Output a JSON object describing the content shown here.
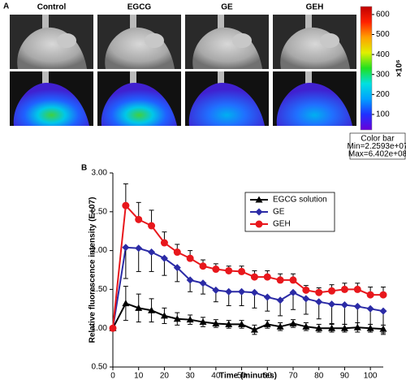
{
  "panel_a": {
    "label": "A",
    "groups": [
      "Control",
      "EGCG",
      "GE",
      "GEH"
    ],
    "colorbar": {
      "unit_label": "×10⁶",
      "lim": [
        22.593,
        640.2
      ],
      "ticks": [
        100,
        200,
        300,
        400,
        500,
        600
      ],
      "colors": [
        "#6a00d8",
        "#2030ff",
        "#00a0ff",
        "#00e0e0",
        "#20e020",
        "#e0f000",
        "#ffa000",
        "#ff2000",
        "#c00000"
      ],
      "note": [
        "Color bar",
        "Min=2.2593e+07",
        "Max=6.402e+08"
      ]
    }
  },
  "chart_data": {
    "type": "line",
    "panel_label": "B",
    "xlabel": "Time (minutes)",
    "ylabel": "Relative fluorescence intensity (E+07)",
    "x": [
      0,
      5,
      10,
      15,
      20,
      25,
      30,
      35,
      40,
      45,
      50,
      55,
      60,
      65,
      70,
      75,
      80,
      85,
      90,
      95,
      100,
      105
    ],
    "xlim": [
      0,
      105
    ],
    "xticks": [
      0,
      10,
      20,
      30,
      40,
      50,
      60,
      70,
      80,
      90,
      100
    ],
    "ylim": [
      0.5,
      3.0
    ],
    "yticks": [
      {
        "value": 0.5,
        "label": "0.50"
      },
      {
        "value": 1.0,
        "label": "1.00"
      },
      {
        "value": 1.5,
        "label": "1.50"
      },
      {
        "value": 2.0,
        "label": "2.00"
      },
      {
        "value": 2.5,
        "label": "2.50"
      },
      {
        "value": 3.0,
        "label": "3.00"
      }
    ],
    "legend": "upper right",
    "series": [
      {
        "name": "EGCG solution",
        "color": "#000000",
        "marker": "triangle",
        "error_side": "both",
        "values": [
          1.0,
          1.32,
          1.26,
          1.23,
          1.16,
          1.12,
          1.11,
          1.08,
          1.06,
          1.05,
          1.05,
          0.98,
          1.05,
          1.02,
          1.06,
          1.02,
          1.0,
          1.0,
          1.0,
          1.01,
          1.0,
          0.99
        ],
        "errors": [
          0,
          0.22,
          0.18,
          0.15,
          0.1,
          0.08,
          0.06,
          0.06,
          0.05,
          0.05,
          0.05,
          0.06,
          0.05,
          0.05,
          0.05,
          0.05,
          0.05,
          0.05,
          0.05,
          0.06,
          0.05,
          0.05
        ]
      },
      {
        "name": "GE",
        "color": "#2b2ba6",
        "marker": "diamond",
        "error_side": "down",
        "values": [
          1.0,
          2.04,
          2.03,
          1.98,
          1.9,
          1.78,
          1.62,
          1.58,
          1.49,
          1.47,
          1.47,
          1.46,
          1.4,
          1.36,
          1.46,
          1.38,
          1.34,
          1.31,
          1.3,
          1.28,
          1.25,
          1.22
        ],
        "errors": [
          0,
          0.4,
          0.3,
          0.25,
          0.22,
          0.18,
          0.15,
          0.14,
          0.15,
          0.18,
          0.18,
          0.2,
          0.18,
          0.2,
          0.22,
          0.2,
          0.22,
          0.25,
          0.25,
          0.28,
          0.3,
          0.3
        ]
      },
      {
        "name": "GEH",
        "color": "#e8171c",
        "marker": "circle",
        "error_side": "up",
        "values": [
          1.0,
          2.58,
          2.4,
          2.32,
          2.1,
          1.98,
          1.9,
          1.8,
          1.76,
          1.74,
          1.73,
          1.66,
          1.66,
          1.62,
          1.62,
          1.49,
          1.46,
          1.48,
          1.5,
          1.5,
          1.43,
          1.43
        ],
        "errors": [
          0,
          0.28,
          0.22,
          0.2,
          0.14,
          0.1,
          0.1,
          0.08,
          0.07,
          0.06,
          0.07,
          0.08,
          0.08,
          0.08,
          0.08,
          0.06,
          0.06,
          0.08,
          0.08,
          0.08,
          0.1,
          0.1
        ]
      }
    ]
  }
}
